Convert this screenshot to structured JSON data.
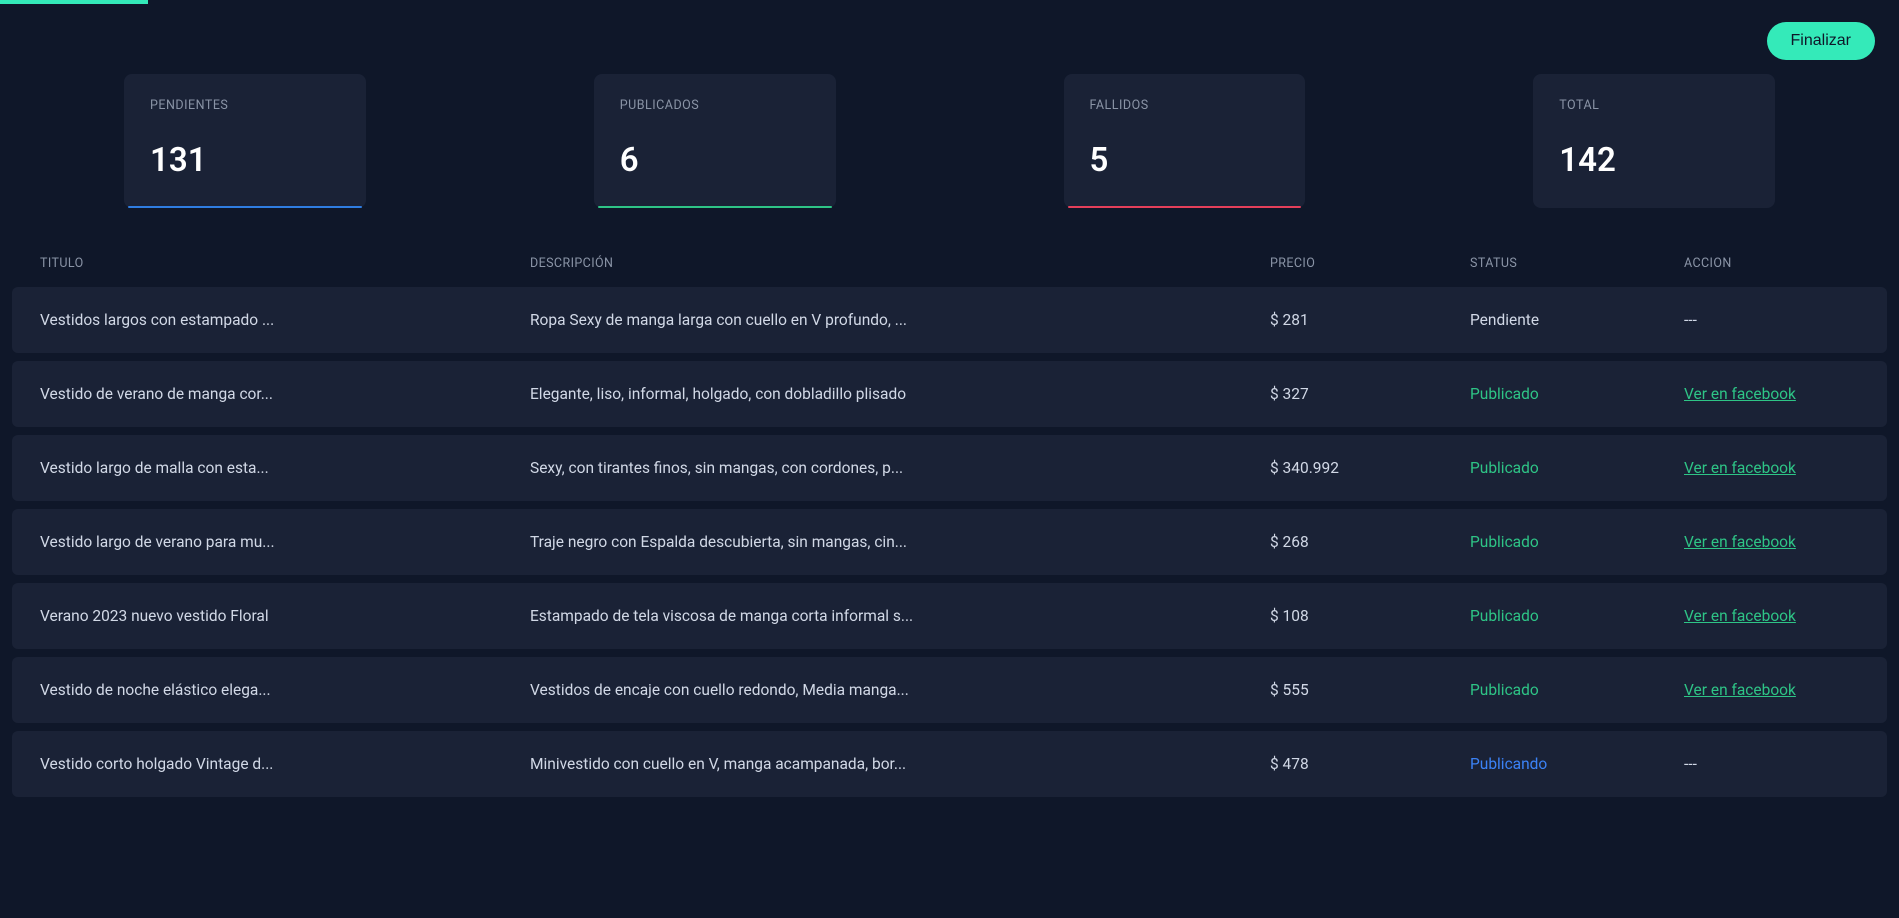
{
  "colors": {
    "background": "#0f1729",
    "card_bg": "#1a2236",
    "accent_primary": "#34eab9",
    "text_muted": "#8a94a6",
    "text_main": "#d1d8e6",
    "text_white": "#ffffff",
    "underline_blue": "#2f7de1",
    "underline_green": "#2ec486",
    "underline_red": "#e43f5a",
    "status_publicado": "#2ec486",
    "status_publicando": "#3b82f6"
  },
  "top": {
    "finalize_label": "Finalizar"
  },
  "cards": [
    {
      "label": "PENDIENTES",
      "value": "131",
      "underline": "blue"
    },
    {
      "label": "PUBLICADOS",
      "value": "6",
      "underline": "green"
    },
    {
      "label": "FALLIDOS",
      "value": "5",
      "underline": "red"
    },
    {
      "label": "TOTAL",
      "value": "142",
      "underline": ""
    }
  ],
  "table": {
    "headers": {
      "title": "TITULO",
      "desc": "DESCRIPCIÓN",
      "price": "PRECIO",
      "status": "STATUS",
      "action": "ACCION"
    },
    "rows": [
      {
        "title": "Vestidos largos con estampado ...",
        "desc": "Ropa Sexy de manga larga con cuello en V profundo, ...",
        "price": "$ 281",
        "status": "Pendiente",
        "status_class": "",
        "action": "---",
        "action_is_link": false
      },
      {
        "title": "Vestido de verano de manga cor...",
        "desc": "Elegante, liso, informal, holgado, con dobladillo plisado",
        "price": "$ 327",
        "status": "Publicado",
        "status_class": "status-publicado",
        "action": "Ver en facebook",
        "action_is_link": true
      },
      {
        "title": "Vestido largo de malla con esta...",
        "desc": "Sexy, con tirantes finos, sin mangas, con cordones, p...",
        "price": "$ 340.992",
        "status": "Publicado",
        "status_class": "status-publicado",
        "action": "Ver en facebook",
        "action_is_link": true
      },
      {
        "title": "Vestido largo de verano para mu...",
        "desc": "Traje negro con Espalda descubierta, sin mangas, cin...",
        "price": "$ 268",
        "status": "Publicado",
        "status_class": "status-publicado",
        "action": "Ver en facebook",
        "action_is_link": true
      },
      {
        "title": "Verano 2023 nuevo vestido Floral",
        "desc": "Estampado de tela viscosa de manga corta informal s...",
        "price": "$ 108",
        "status": "Publicado",
        "status_class": "status-publicado",
        "action": "Ver en facebook",
        "action_is_link": true
      },
      {
        "title": "Vestido de noche elástico elega...",
        "desc": "Vestidos de encaje con cuello redondo, Media manga...",
        "price": "$ 555",
        "status": "Publicado",
        "status_class": "status-publicado",
        "action": "Ver en facebook",
        "action_is_link": true
      },
      {
        "title": "Vestido corto holgado Vintage d...",
        "desc": "Minivestido con cuello en V, manga acampanada, bor...",
        "price": "$ 478",
        "status": "Publicando",
        "status_class": "status-publicando",
        "action": "---",
        "action_is_link": false
      }
    ]
  }
}
